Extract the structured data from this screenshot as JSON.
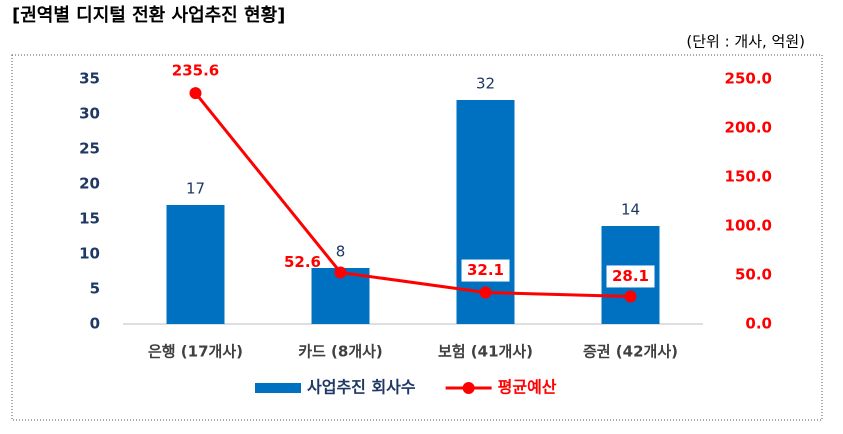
{
  "chart_data": {
    "type": "bar",
    "title": "[권역별 디지털 전환 사업추진 현황]",
    "subtitle": "(단위 : 개사, 억원)",
    "categories": [
      "은행 (17개사)",
      "카드 (8개사)",
      "보험 (41개사)",
      "증권 (42개사)"
    ],
    "series": [
      {
        "name": "사업추진 회사수",
        "type": "bar",
        "color": "#0070c0",
        "values": [
          17,
          8,
          32,
          14
        ]
      },
      {
        "name": "평균예산",
        "type": "line",
        "axis": "y2",
        "color": "#ff0000",
        "values": [
          235.6,
          52.6,
          32.1,
          28.1
        ]
      }
    ],
    "ylim": [
      0,
      35
    ],
    "yticks": [
      0,
      5,
      10,
      15,
      20,
      25,
      30,
      35
    ],
    "y2lim": [
      0,
      250
    ],
    "y2ticks": [
      {
        "value": 0,
        "label": "0.0"
      },
      {
        "value": 50,
        "label": "50.0"
      },
      {
        "value": 100,
        "label": "100.0"
      },
      {
        "value": 150,
        "label": "150.0"
      },
      {
        "value": 200,
        "label": "200.0"
      },
      {
        "value": 250,
        "label": "250.0"
      }
    ],
    "grid": false,
    "legend": "bottom"
  }
}
